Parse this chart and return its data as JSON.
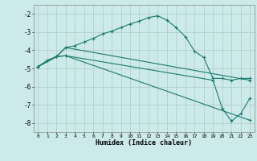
{
  "xlabel": "Humidex (Indice chaleur)",
  "background_color": "#cdeaea",
  "grid_color": "#b0c8c8",
  "line_color": "#1a7a6e",
  "xlim": [
    -0.5,
    23.5
  ],
  "ylim": [
    -8.5,
    -1.5
  ],
  "yticks": [
    -8,
    -7,
    -6,
    -5,
    -4,
    -3,
    -2
  ],
  "xticks": [
    0,
    1,
    2,
    3,
    4,
    5,
    6,
    7,
    8,
    9,
    10,
    11,
    12,
    13,
    14,
    15,
    16,
    17,
    18,
    19,
    20,
    21,
    22,
    23
  ],
  "line1_x": [
    0,
    1,
    2,
    3,
    4,
    5,
    6,
    7,
    8,
    9,
    10,
    11,
    12,
    13,
    14,
    15,
    16,
    17,
    18,
    19,
    20,
    21,
    22,
    23
  ],
  "line1_y": [
    -4.9,
    -4.55,
    -4.35,
    -3.85,
    -3.75,
    -3.55,
    -3.35,
    -3.1,
    -2.95,
    -2.75,
    -2.55,
    -2.4,
    -2.2,
    -2.1,
    -2.35,
    -2.75,
    -3.25,
    -4.05,
    -4.4,
    -5.55,
    -5.55,
    -5.65,
    -5.55,
    -5.55
  ],
  "line2_x": [
    0,
    2,
    3,
    23
  ],
  "line2_y": [
    -4.9,
    -4.35,
    -3.85,
    -5.65
  ],
  "line3_x": [
    0,
    2,
    3,
    23
  ],
  "line3_y": [
    -4.9,
    -4.35,
    -4.3,
    -7.85
  ],
  "line4_x": [
    0,
    2,
    3,
    19,
    20,
    21,
    22,
    23
  ],
  "line4_y": [
    -4.9,
    -4.35,
    -4.3,
    -5.65,
    -7.2,
    -7.9,
    -7.5,
    -6.65
  ]
}
